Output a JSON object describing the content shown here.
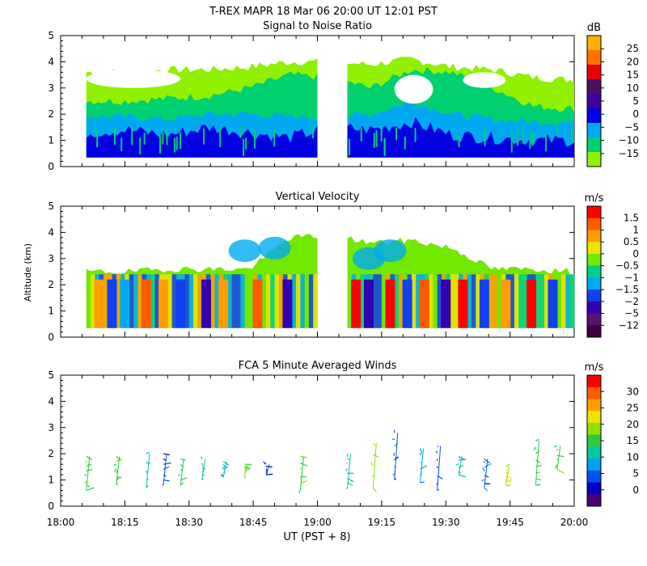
{
  "header": {
    "title": "T-REX   MAPR 18 Mar 06   20:00 UT   12:01   PST"
  },
  "x_axis": {
    "label": "UT  (PST + 8)",
    "ticks": [
      "18:00",
      "18:15",
      "18:30",
      "18:45",
      "19:00",
      "19:15",
      "19:30",
      "19:45",
      "20:00"
    ]
  },
  "y_axis_label": "Altitude (km)",
  "colors": {
    "white_gap": "#ffffff",
    "frame": "#000000"
  },
  "chart_data": [
    {
      "type": "heatmap",
      "title": "Signal to Noise Ratio",
      "xlim": [
        "18:00",
        "20:00"
      ],
      "ylim": [
        0,
        5
      ],
      "yticks": [
        "0",
        "1",
        "2",
        "3",
        "4",
        "5"
      ],
      "data_gap": [
        "19:00",
        "19:07"
      ],
      "colorbar": {
        "unit": "dB",
        "tick_labels": [
          "25",
          "20",
          "15",
          "10",
          "5",
          "0",
          "−5",
          "−10",
          "−15"
        ],
        "colors": [
          "#ffb000",
          "#ff7000",
          "#e80000",
          "#4a1060",
          "#4000a0",
          "#0000e0",
          "#00a8f0",
          "#00d070",
          "#90f000"
        ]
      },
      "layers": [
        {
          "level": "-15 dB",
          "color": "#90f000",
          "top_km": [
            3.6,
            3.6,
            3.7,
            3.7,
            3.8,
            4.0,
            4.0,
            3.9,
            4.1,
            3.8,
            3.7,
            3.4,
            3.3
          ]
        },
        {
          "level": "-10 dB",
          "color": "#00d070",
          "top_km": [
            2.5,
            2.5,
            2.6,
            2.7,
            3.0,
            3.5,
            3.4,
            3.0,
            3.7,
            3.6,
            3.0,
            2.3,
            2.2
          ]
        },
        {
          "level": "-5 dB",
          "color": "#00a8f0",
          "top_km": [
            1.9,
            1.9,
            1.8,
            2.0,
            2.0,
            1.9,
            1.9,
            2.0,
            2.5,
            2.0,
            1.8,
            1.7,
            1.7
          ]
        },
        {
          "level": "0 dB",
          "color": "#0000e0",
          "top_km": [
            1.3,
            1.4,
            1.2,
            1.5,
            1.3,
            1.1,
            1.5,
            1.4,
            1.7,
            1.2,
            1.1,
            1.0,
            1.0
          ]
        }
      ],
      "clear_patches_km": [
        {
          "x": [
            "18:06",
            "18:28"
          ],
          "alt": [
            3.0,
            3.7
          ]
        },
        {
          "x": [
            "19:18",
            "19:27"
          ],
          "alt": [
            2.4,
            3.5
          ]
        },
        {
          "x": [
            "19:34",
            "19:44"
          ],
          "alt": [
            3.0,
            3.6
          ]
        }
      ]
    },
    {
      "type": "heatmap",
      "title": "Vertical Velocity",
      "xlim": [
        "18:00",
        "20:00"
      ],
      "ylim": [
        0,
        5
      ],
      "yticks": [
        "0",
        "1",
        "2",
        "3",
        "4",
        "5"
      ],
      "data_gap": [
        "19:00",
        "19:07"
      ],
      "colorbar": {
        "unit": "m/s",
        "tick_labels": [
          "1.5",
          "1",
          "0.5",
          "0",
          "−0.5",
          "−1",
          "−1.5",
          "−2",
          "−5",
          "−12"
        ],
        "colors": [
          "#ff0000",
          "#ff5a00",
          "#ff9c00",
          "#f2e200",
          "#70e800",
          "#00d08a",
          "#00aaf0",
          "#1040f0",
          "#3300b0",
          "#5a1070",
          "#3a0040"
        ]
      },
      "layer_top_km": [
        2.5,
        2.5,
        2.6,
        2.6,
        2.6,
        3.8,
        3.9,
        3.6,
        3.7,
        3.4,
        2.6,
        2.6,
        2.5
      ],
      "columns": [
        {
          "x": "18:09",
          "color": "#ff9c00"
        },
        {
          "x": "18:12",
          "color": "#1040f0"
        },
        {
          "x": "18:15",
          "color": "#00aaf0"
        },
        {
          "x": "18:20",
          "color": "#ff5a00"
        },
        {
          "x": "18:24",
          "color": "#ff9c00"
        },
        {
          "x": "18:28",
          "color": "#1040f0"
        },
        {
          "x": "18:34",
          "color": "#3300b0"
        },
        {
          "x": "18:38",
          "color": "#ff9c00"
        },
        {
          "x": "18:46",
          "color": "#ff5a00"
        },
        {
          "x": "18:53",
          "color": "#3300b0"
        },
        {
          "x": "19:09",
          "color": "#ff0000"
        },
        {
          "x": "19:12",
          "color": "#3300b0"
        },
        {
          "x": "19:17",
          "color": "#ff0000"
        },
        {
          "x": "19:21",
          "color": "#1040f0"
        },
        {
          "x": "19:25",
          "color": "#ff5a00"
        },
        {
          "x": "19:30",
          "color": "#3300b0"
        },
        {
          "x": "19:34",
          "color": "#ff0000"
        },
        {
          "x": "19:39",
          "color": "#1040f0"
        },
        {
          "x": "19:44",
          "color": "#ff9c00"
        },
        {
          "x": "19:50",
          "color": "#ff0000"
        },
        {
          "x": "19:55",
          "color": "#1040f0"
        }
      ]
    },
    {
      "type": "scatter",
      "title": "FCA 5 Minute Averaged Winds",
      "xlim": [
        "18:00",
        "20:00"
      ],
      "ylim": [
        0,
        5
      ],
      "yticks": [
        "0",
        "1",
        "2",
        "3",
        "4",
        "5"
      ],
      "colorbar": {
        "unit": "m/s",
        "tick_labels": [
          "30",
          "25",
          "20",
          "15",
          "10",
          "5",
          "0"
        ],
        "colors": [
          "#ff0000",
          "#ff5a00",
          "#ff9c00",
          "#f2e200",
          "#90e000",
          "#30c840",
          "#00c8a0",
          "#00a0f0",
          "#0050f0",
          "#0000c0",
          "#4a0070"
        ]
      },
      "profiles": [
        {
          "x": "18:06",
          "alt_min_km": 0.6,
          "alt_max_km": 1.9,
          "speed_ms": 15
        },
        {
          "x": "18:13",
          "alt_min_km": 0.8,
          "alt_max_km": 1.9,
          "speed_ms": 14
        },
        {
          "x": "18:20",
          "alt_min_km": 0.7,
          "alt_max_km": 2.0,
          "speed_ms": 12
        },
        {
          "x": "18:24",
          "alt_min_km": 0.8,
          "alt_max_km": 2.0,
          "speed_ms": 5
        },
        {
          "x": "18:28",
          "alt_min_km": 0.8,
          "alt_max_km": 1.8,
          "speed_ms": 14
        },
        {
          "x": "18:33",
          "alt_min_km": 1.0,
          "alt_max_km": 1.8,
          "speed_ms": 13
        },
        {
          "x": "18:38",
          "alt_min_km": 1.1,
          "alt_max_km": 1.7,
          "speed_ms": 10
        },
        {
          "x": "18:43",
          "alt_min_km": 1.2,
          "alt_max_km": 1.6,
          "speed_ms": 17
        },
        {
          "x": "18:48",
          "alt_min_km": 1.2,
          "alt_max_km": 1.6,
          "speed_ms": 5
        },
        {
          "x": "18:56",
          "alt_min_km": 0.6,
          "alt_max_km": 1.9,
          "speed_ms": 16
        },
        {
          "x": "19:07",
          "alt_min_km": 0.7,
          "alt_max_km": 2.0,
          "speed_ms": 12
        },
        {
          "x": "19:13",
          "alt_min_km": 0.7,
          "alt_max_km": 2.4,
          "speed_ms": 18
        },
        {
          "x": "19:18",
          "alt_min_km": 1.0,
          "alt_max_km": 2.8,
          "speed_ms": 6
        },
        {
          "x": "19:24",
          "alt_min_km": 0.9,
          "alt_max_km": 2.2,
          "speed_ms": 10
        },
        {
          "x": "19:28",
          "alt_min_km": 0.6,
          "alt_max_km": 2.3,
          "speed_ms": 5
        },
        {
          "x": "19:33",
          "alt_min_km": 1.2,
          "alt_max_km": 1.9,
          "speed_ms": 12
        },
        {
          "x": "19:39",
          "alt_min_km": 0.7,
          "alt_max_km": 1.8,
          "speed_ms": 6
        },
        {
          "x": "19:44",
          "alt_min_km": 0.8,
          "alt_max_km": 1.5,
          "speed_ms": 18
        },
        {
          "x": "19:51",
          "alt_min_km": 0.8,
          "alt_max_km": 2.5,
          "speed_ms": 14
        },
        {
          "x": "19:56",
          "alt_min_km": 1.4,
          "alt_max_km": 2.3,
          "speed_ms": 15
        }
      ]
    }
  ]
}
